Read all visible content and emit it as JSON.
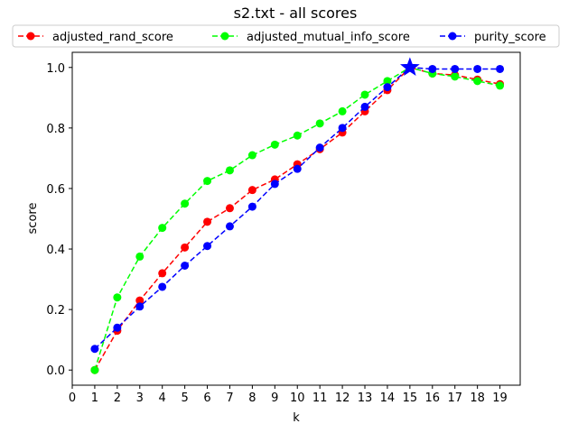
{
  "chart_data": {
    "type": "line",
    "title": "s2.txt - all scores",
    "xlabel": "k",
    "ylabel": "score",
    "xlim": [
      0,
      19.9
    ],
    "ylim": [
      -0.05,
      1.05
    ],
    "xticks": [
      0,
      1,
      2,
      3,
      4,
      5,
      6,
      7,
      8,
      9,
      10,
      11,
      12,
      13,
      14,
      15,
      16,
      17,
      18,
      19
    ],
    "xtick_labels": [
      "0",
      "1",
      "2",
      "3",
      "4",
      "5",
      "6",
      "7",
      "8",
      "9",
      "10",
      "11",
      "12",
      "13",
      "14",
      "15",
      "16",
      "17",
      "18",
      "19"
    ],
    "yticks": [
      0.0,
      0.2,
      0.4,
      0.6,
      0.8,
      1.0
    ],
    "ytick_labels": [
      "0.0",
      "0.2",
      "0.4",
      "0.6",
      "0.8",
      "1.0"
    ],
    "grid": false,
    "legend_position": "top, above plot",
    "x": [
      1,
      2,
      3,
      4,
      5,
      6,
      7,
      8,
      9,
      10,
      11,
      12,
      13,
      14,
      15,
      16,
      17,
      18,
      19
    ],
    "series": [
      {
        "name": "adjusted_rand_score",
        "color": "#ff0000",
        "values": [
          0.0,
          0.13,
          0.23,
          0.32,
          0.405,
          0.49,
          0.535,
          0.595,
          0.63,
          0.68,
          0.73,
          0.785,
          0.855,
          0.925,
          1.0,
          0.98,
          0.975,
          0.96,
          0.945
        ]
      },
      {
        "name": "adjusted_mutual_info_score",
        "color": "#00ff00",
        "values": [
          0.0,
          0.24,
          0.375,
          0.47,
          0.55,
          0.625,
          0.66,
          0.71,
          0.745,
          0.775,
          0.815,
          0.855,
          0.91,
          0.955,
          1.0,
          0.98,
          0.97,
          0.955,
          0.94
        ]
      },
      {
        "name": "purity_score",
        "color": "#0000ff",
        "values": [
          0.07,
          0.14,
          0.21,
          0.275,
          0.345,
          0.41,
          0.475,
          0.54,
          0.615,
          0.665,
          0.735,
          0.8,
          0.87,
          0.935,
          1.0,
          0.995,
          0.995,
          0.995,
          0.995
        ]
      }
    ],
    "highlight": {
      "x": 15,
      "y": 1.0,
      "marker": "star",
      "color": "#0000ff"
    }
  }
}
